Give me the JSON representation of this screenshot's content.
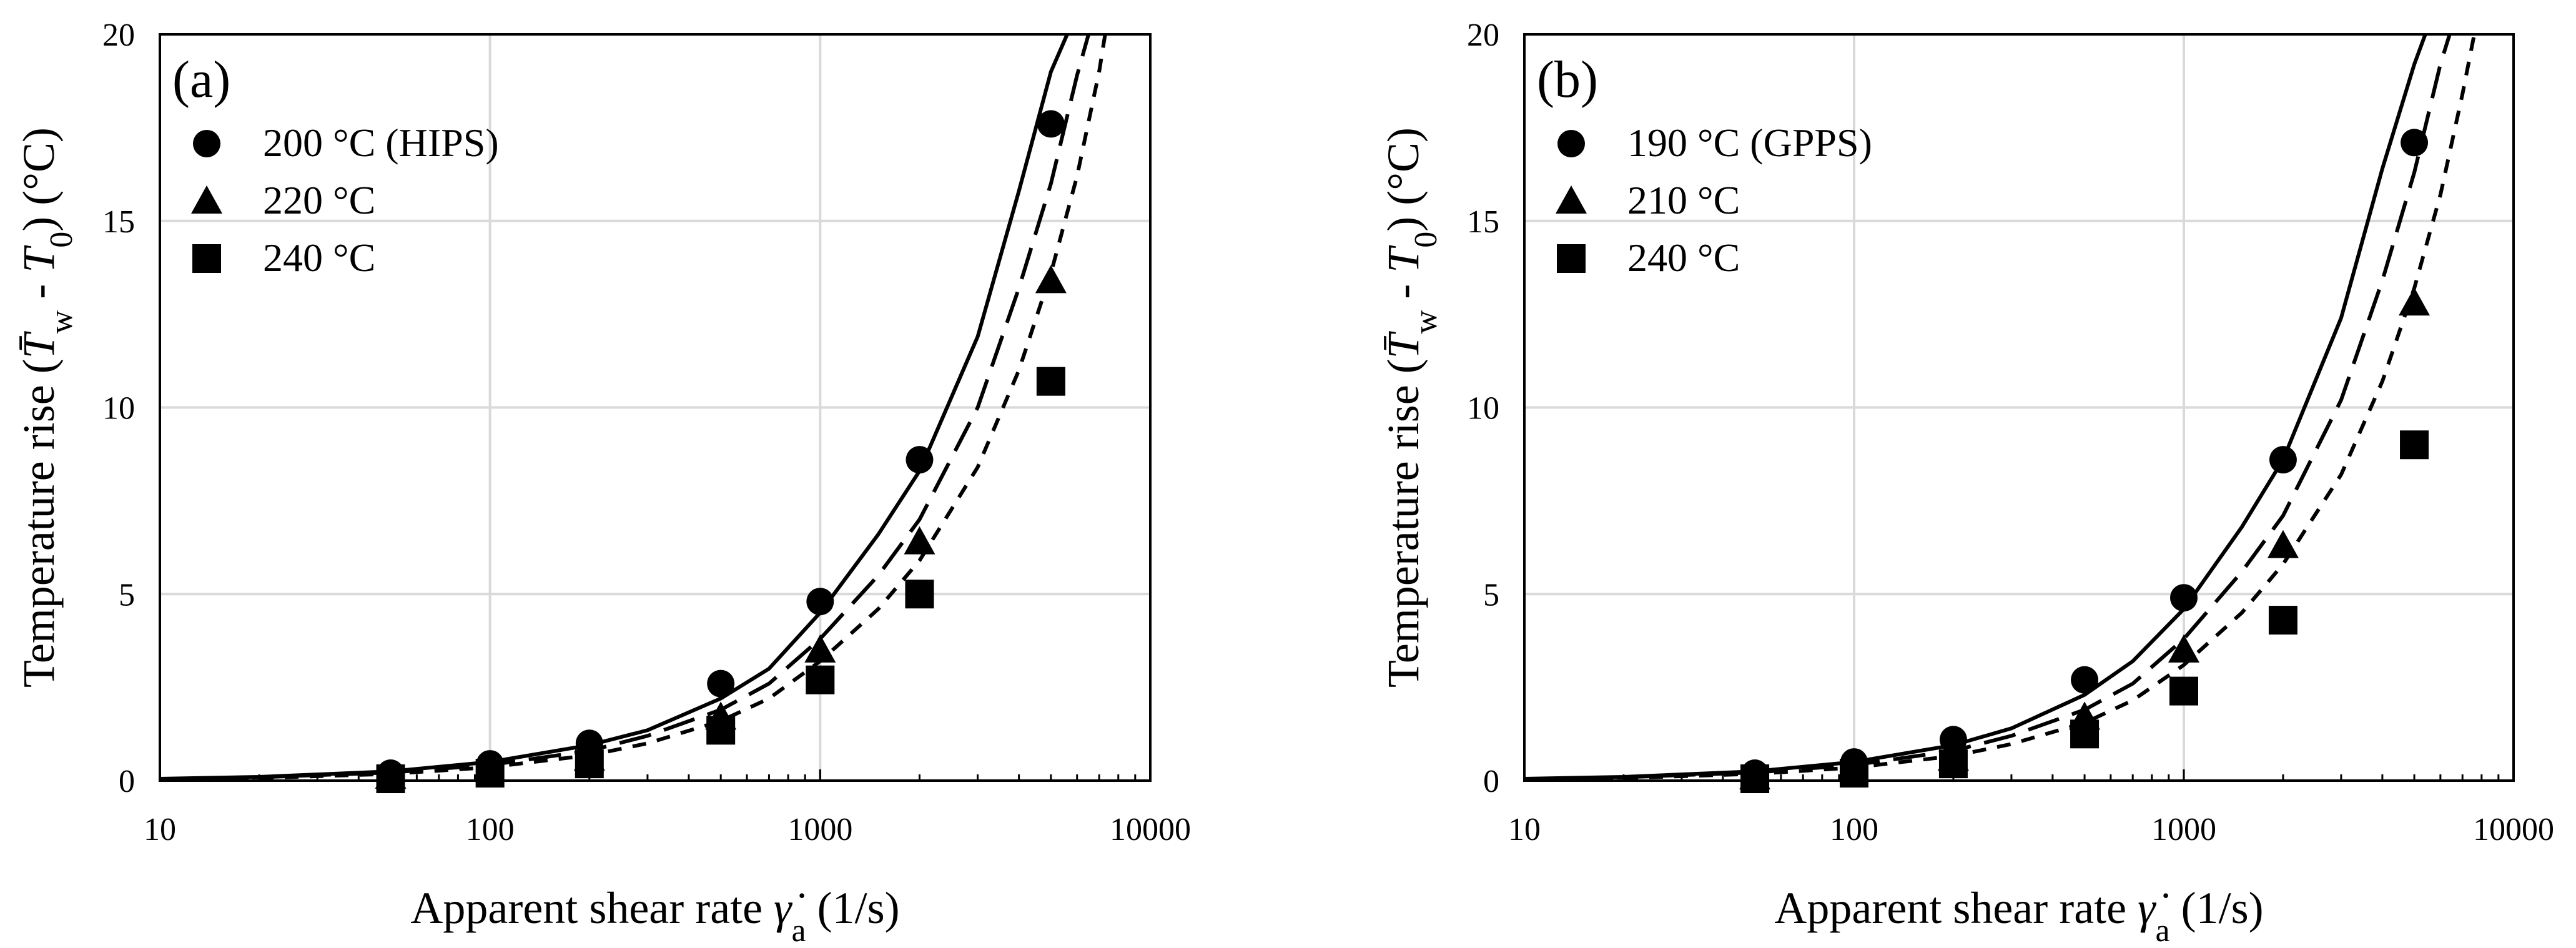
{
  "chart_data": [
    {
      "type": "scatter",
      "panel_label": "(a)",
      "xlabel": "Apparent shear rate γ̇a (1/s)",
      "ylabel": "Temperature rise (T̄w - T0) (°C)",
      "xscale": "log",
      "xlim": [
        10,
        10000
      ],
      "ylim": [
        0,
        20
      ],
      "xticks": [
        "10",
        "100",
        "1000",
        "10000"
      ],
      "yticks": [
        "0",
        "5",
        "10",
        "15",
        "20"
      ],
      "grid": true,
      "legend_position": "top-left",
      "series": [
        {
          "name": "200 °C (HIPS)",
          "marker": "circle",
          "x": [
            50,
            100,
            200,
            500,
            1000,
            2000,
            5000
          ],
          "y": [
            0.2,
            0.45,
            1.0,
            2.6,
            4.8,
            8.6,
            17.6
          ]
        },
        {
          "name": "220 °C",
          "marker": "triangle",
          "x": [
            50,
            100,
            200,
            500,
            1000,
            2000,
            5000
          ],
          "y": [
            0.12,
            0.3,
            0.6,
            1.7,
            3.5,
            6.4,
            13.4
          ]
        },
        {
          "name": "240 °C",
          "marker": "square",
          "x": [
            50,
            100,
            200,
            500,
            1000,
            2000,
            5000
          ],
          "y": [
            0.05,
            0.2,
            0.45,
            1.35,
            2.7,
            5.0,
            10.7
          ]
        }
      ],
      "model_curves": [
        {
          "style": "solid",
          "x": [
            10,
            20,
            50,
            100,
            200,
            300,
            500,
            700,
            1000,
            1500,
            2000,
            3000,
            4000,
            5000,
            5600
          ],
          "y": [
            0.05,
            0.1,
            0.25,
            0.5,
            0.95,
            1.35,
            2.2,
            3.0,
            4.5,
            6.6,
            8.3,
            11.9,
            15.8,
            19.0,
            20.0
          ]
        },
        {
          "style": "long-dash",
          "x": [
            10,
            20,
            50,
            100,
            200,
            300,
            500,
            700,
            1000,
            1500,
            2000,
            3000,
            4000,
            5000,
            6000,
            6500
          ],
          "y": [
            0.04,
            0.09,
            0.22,
            0.42,
            0.8,
            1.2,
            1.9,
            2.6,
            3.8,
            5.5,
            7.0,
            10.0,
            13.2,
            16.0,
            18.9,
            20.0
          ]
        },
        {
          "style": "short-dash",
          "x": [
            10,
            20,
            50,
            100,
            200,
            300,
            500,
            700,
            1000,
            1500,
            2000,
            3000,
            4000,
            5000,
            6000,
            7000,
            7300
          ],
          "y": [
            0.03,
            0.07,
            0.18,
            0.36,
            0.68,
            1.0,
            1.6,
            2.2,
            3.2,
            4.6,
            5.9,
            8.4,
            11.0,
            13.6,
            16.2,
            19.0,
            20.0
          ]
        }
      ]
    },
    {
      "type": "scatter",
      "panel_label": "(b)",
      "xlabel": "Apparent shear rate γ̇a (1/s)",
      "ylabel": "Temperature rise (T̄w - T0) (°C)",
      "xscale": "log",
      "xlim": [
        10,
        10000
      ],
      "ylim": [
        0,
        20
      ],
      "xticks": [
        "10",
        "100",
        "1000",
        "10000"
      ],
      "yticks": [
        "0",
        "5",
        "10",
        "15",
        "20"
      ],
      "grid": true,
      "legend_position": "top-left",
      "series": [
        {
          "name": "190 °C (GPPS)",
          "marker": "circle",
          "x": [
            50,
            100,
            200,
            500,
            1000,
            2000,
            5000
          ],
          "y": [
            0.2,
            0.5,
            1.1,
            2.7,
            4.9,
            8.6,
            17.1
          ]
        },
        {
          "name": "210 °C",
          "marker": "triangle",
          "x": [
            50,
            100,
            200,
            500,
            1000,
            2000,
            5000
          ],
          "y": [
            0.1,
            0.3,
            0.6,
            1.7,
            3.5,
            6.3,
            12.8
          ]
        },
        {
          "name": "240 °C",
          "marker": "square",
          "x": [
            50,
            100,
            200,
            500,
            1000,
            2000,
            5000
          ],
          "y": [
            0.05,
            0.2,
            0.45,
            1.25,
            2.4,
            4.3,
            9.0
          ]
        }
      ],
      "model_curves": [
        {
          "style": "solid",
          "x": [
            10,
            20,
            50,
            100,
            200,
            300,
            500,
            700,
            1000,
            1500,
            2000,
            3000,
            4000,
            5000,
            5400
          ],
          "y": [
            0.05,
            0.1,
            0.25,
            0.5,
            0.95,
            1.4,
            2.3,
            3.2,
            4.6,
            6.8,
            8.6,
            12.4,
            16.4,
            19.2,
            20.0
          ]
        },
        {
          "style": "long-dash",
          "x": [
            10,
            20,
            50,
            100,
            200,
            300,
            500,
            700,
            1000,
            1500,
            2000,
            3000,
            4000,
            5000,
            6000,
            6400
          ],
          "y": [
            0.04,
            0.09,
            0.22,
            0.42,
            0.8,
            1.2,
            1.9,
            2.6,
            3.8,
            5.6,
            7.1,
            10.2,
            13.4,
            16.3,
            19.2,
            20.0
          ]
        },
        {
          "style": "short-dash",
          "x": [
            10,
            20,
            50,
            100,
            200,
            300,
            500,
            700,
            1000,
            1500,
            2000,
            3000,
            4000,
            5000,
            6000,
            7000,
            7600
          ],
          "y": [
            0.03,
            0.07,
            0.18,
            0.35,
            0.66,
            0.98,
            1.55,
            2.15,
            3.1,
            4.5,
            5.8,
            8.2,
            10.7,
            13.2,
            15.7,
            18.4,
            20.0
          ]
        }
      ]
    }
  ]
}
